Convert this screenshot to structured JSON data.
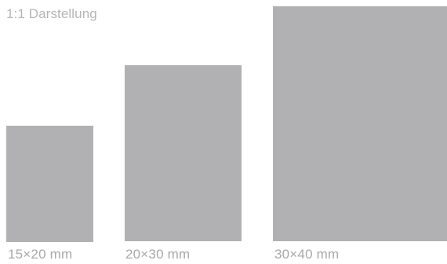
{
  "caption": "1:1 Darstellung",
  "sizes": [
    {
      "label": "15×20 mm",
      "width_mm": 15,
      "height_mm": 20
    },
    {
      "label": "20×30 mm",
      "width_mm": 20,
      "height_mm": 30
    },
    {
      "label": "30×40 mm",
      "width_mm": 30,
      "height_mm": 40
    }
  ],
  "colors": {
    "rect_fill": "#b1b1b3",
    "caption_text": "#b5b5b5",
    "label_text": "#a8a8a8",
    "background": "#ffffff"
  }
}
